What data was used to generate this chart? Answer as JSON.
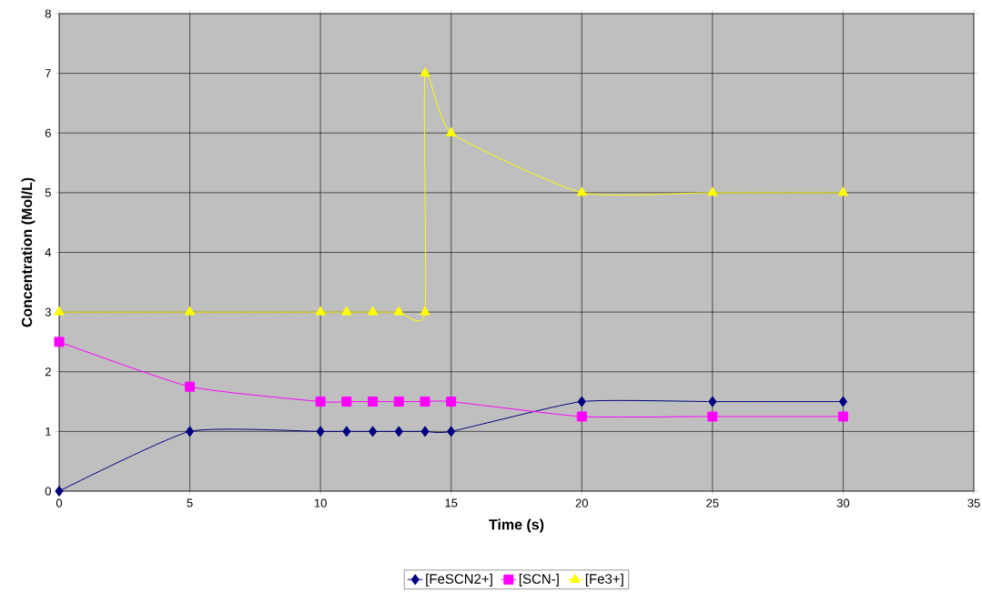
{
  "chart_data": {
    "type": "line",
    "xlabel": "Time (s)",
    "ylabel": "Concentration (Mol/L)",
    "xlim": [
      0,
      35
    ],
    "ylim": [
      0,
      8
    ],
    "xticks": [
      0,
      5,
      10,
      15,
      20,
      25,
      30,
      35
    ],
    "yticks": [
      0,
      1,
      2,
      3,
      4,
      5,
      6,
      7,
      8
    ],
    "grid": true,
    "legend": "bottom",
    "series": [
      {
        "name": "[FeSCN2+]",
        "color": "#000080",
        "marker": "diamond",
        "x": [
          0,
          5,
          10,
          11,
          12,
          13,
          14,
          15,
          20,
          25,
          30
        ],
        "values": [
          0,
          1,
          1,
          1,
          1,
          1,
          1,
          1,
          1.5,
          1.5,
          1.5
        ]
      },
      {
        "name": "[SCN-]",
        "color": "#ff00ff",
        "marker": "square",
        "x": [
          0,
          5,
          10,
          11,
          12,
          13,
          14,
          15,
          20,
          25,
          30
        ],
        "values": [
          2.5,
          1.75,
          1.5,
          1.5,
          1.5,
          1.5,
          1.5,
          1.5,
          1.25,
          1.25,
          1.25
        ]
      },
      {
        "name": "[Fe3+]",
        "color": "#ffff00",
        "marker": "triangle",
        "x": [
          0,
          5,
          10,
          11,
          12,
          13,
          14,
          14,
          15,
          20,
          25,
          30
        ],
        "values": [
          3,
          3,
          3,
          3,
          3,
          3,
          3,
          7,
          6,
          5,
          5,
          5
        ]
      }
    ]
  }
}
